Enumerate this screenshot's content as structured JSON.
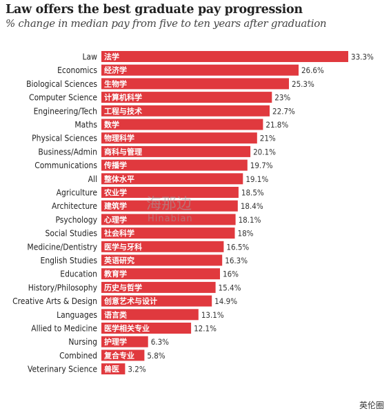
{
  "title": "Law offers the best graduate pay progression",
  "subtitle": "% change in median pay from five to ten years after graduation",
  "watermark": {
    "text": "海那边",
    "sub": "Hinabian"
  },
  "corner_text": "英伦圈",
  "colors": {
    "bar": "#e0393e",
    "text": "#222222"
  },
  "chart_data": {
    "type": "bar",
    "orientation": "horizontal",
    "title": "Law offers the best graduate pay progression",
    "subtitle": "% change in median pay from five to ten years after graduation",
    "xlabel": "",
    "ylabel": "",
    "xlim": [
      0,
      33.3
    ],
    "categories": [
      "Law",
      "Economics",
      "Biological Sciences",
      "Computer Science",
      "Engineering/Tech",
      "Maths",
      "Physical Sciences",
      "Business/Admin",
      "Communications",
      "All",
      "Agriculture",
      "Architecture",
      "Psychology",
      "Social Studies",
      "Medicine/Dentistry",
      "English Studies",
      "Education",
      "History/Philosophy",
      "Creative Arts & Design",
      "Languages",
      "Allied to Medicine",
      "Nursing",
      "Combined",
      "Veterinary Science"
    ],
    "bar_labels": [
      "法学",
      "经济学",
      "生物学",
      "计算机科学",
      "工程与技术",
      "数学",
      "物理科学",
      "商科与管理",
      "传播学",
      "整体水平",
      "农业学",
      "建筑学",
      "心理学",
      "社会科学",
      "医学与牙科",
      "英语研究",
      "教育学",
      "历史与哲学",
      "创意艺术与设计",
      "语言类",
      "医学相关专业",
      "护理学",
      "复合专业",
      "兽医"
    ],
    "values": [
      33.3,
      26.6,
      25.3,
      23,
      22.7,
      21.8,
      21,
      20.1,
      19.7,
      19.1,
      18.5,
      18.4,
      18.1,
      18,
      16.5,
      16.3,
      16,
      15.4,
      14.9,
      13.1,
      12.1,
      6.3,
      5.8,
      3.2
    ],
    "value_labels": [
      "33.3%",
      "26.6%",
      "25.3%",
      "23%",
      "22.7%",
      "21.8%",
      "21%",
      "20.1%",
      "19.7%",
      "19.1%",
      "18.5%",
      "18.4%",
      "18.1%",
      "18%",
      "16.5%",
      "16.3%",
      "16%",
      "15.4%",
      "14.9%",
      "13.1%",
      "12.1%",
      "6.3%",
      "5.8%",
      "3.2%"
    ]
  }
}
